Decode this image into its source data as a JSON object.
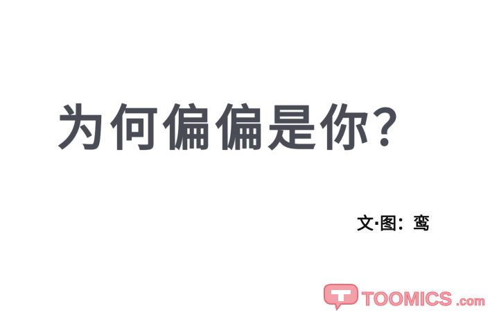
{
  "title": "为何偏偏是你？",
  "credit": "文·图：鸾",
  "watermark": {
    "brand": "TOOMICS",
    "suffix": ".com",
    "color": "#f06b78"
  }
}
